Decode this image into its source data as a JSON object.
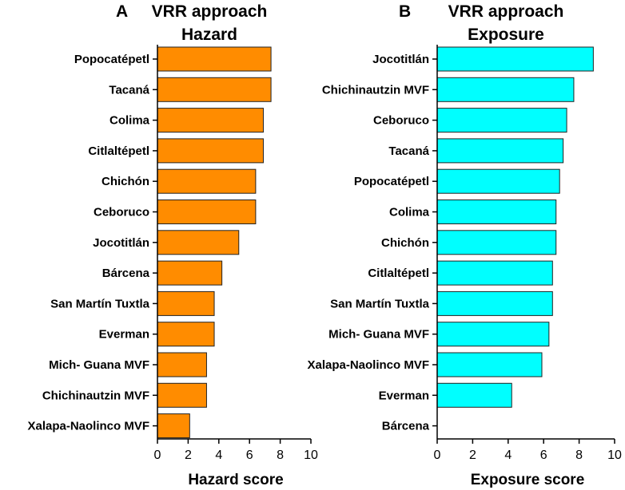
{
  "chart_data": [
    {
      "panel": "A",
      "type": "bar",
      "orientation": "horizontal",
      "title": [
        "VRR approach",
        "Hazard"
      ],
      "categories": [
        "Popocatépetl",
        "Tacaná",
        "Colima",
        "Citlaltépetl",
        "Chichón",
        "Ceboruco",
        "Jocotitlán",
        "Bárcena",
        "San Martín Tuxtla",
        "Everman",
        "Mich- Guana MVF",
        "Chichinautzin MVF",
        "Xalapa-Naolinco MVF"
      ],
      "values": [
        7.4,
        7.4,
        6.9,
        6.9,
        6.4,
        6.4,
        5.3,
        4.2,
        3.7,
        3.7,
        3.2,
        3.2,
        2.1
      ],
      "xlabel": "Hazard score",
      "ylabel": "",
      "xlim": [
        0,
        10
      ],
      "xticks": [
        "0",
        "2",
        "4",
        "6",
        "8",
        "10"
      ],
      "bar_color": "#FF8C00",
      "edge_color": "#222222"
    },
    {
      "panel": "B",
      "type": "bar",
      "orientation": "horizontal",
      "title": [
        "VRR approach",
        "Exposure"
      ],
      "categories": [
        "Jocotitlán",
        "Chichinautzin MVF",
        "Ceboruco",
        "Tacaná",
        "Popocatépetl",
        "Colima",
        "Chichón",
        "Citlaltépetl",
        "San Martín Tuxtla",
        "Mich- Guana MVF",
        "Xalapa-Naolinco MVF",
        "Everman",
        "Bárcena"
      ],
      "values": [
        8.8,
        7.7,
        7.3,
        7.1,
        6.9,
        6.7,
        6.7,
        6.5,
        6.5,
        6.3,
        5.9,
        4.2,
        0
      ],
      "xlabel": "Exposure score",
      "ylabel": "",
      "xlim": [
        0,
        10
      ],
      "xticks": [
        "0",
        "2",
        "4",
        "6",
        "8",
        "10"
      ],
      "bar_color": "#00FFFF",
      "edge_color": "#222222"
    }
  ]
}
